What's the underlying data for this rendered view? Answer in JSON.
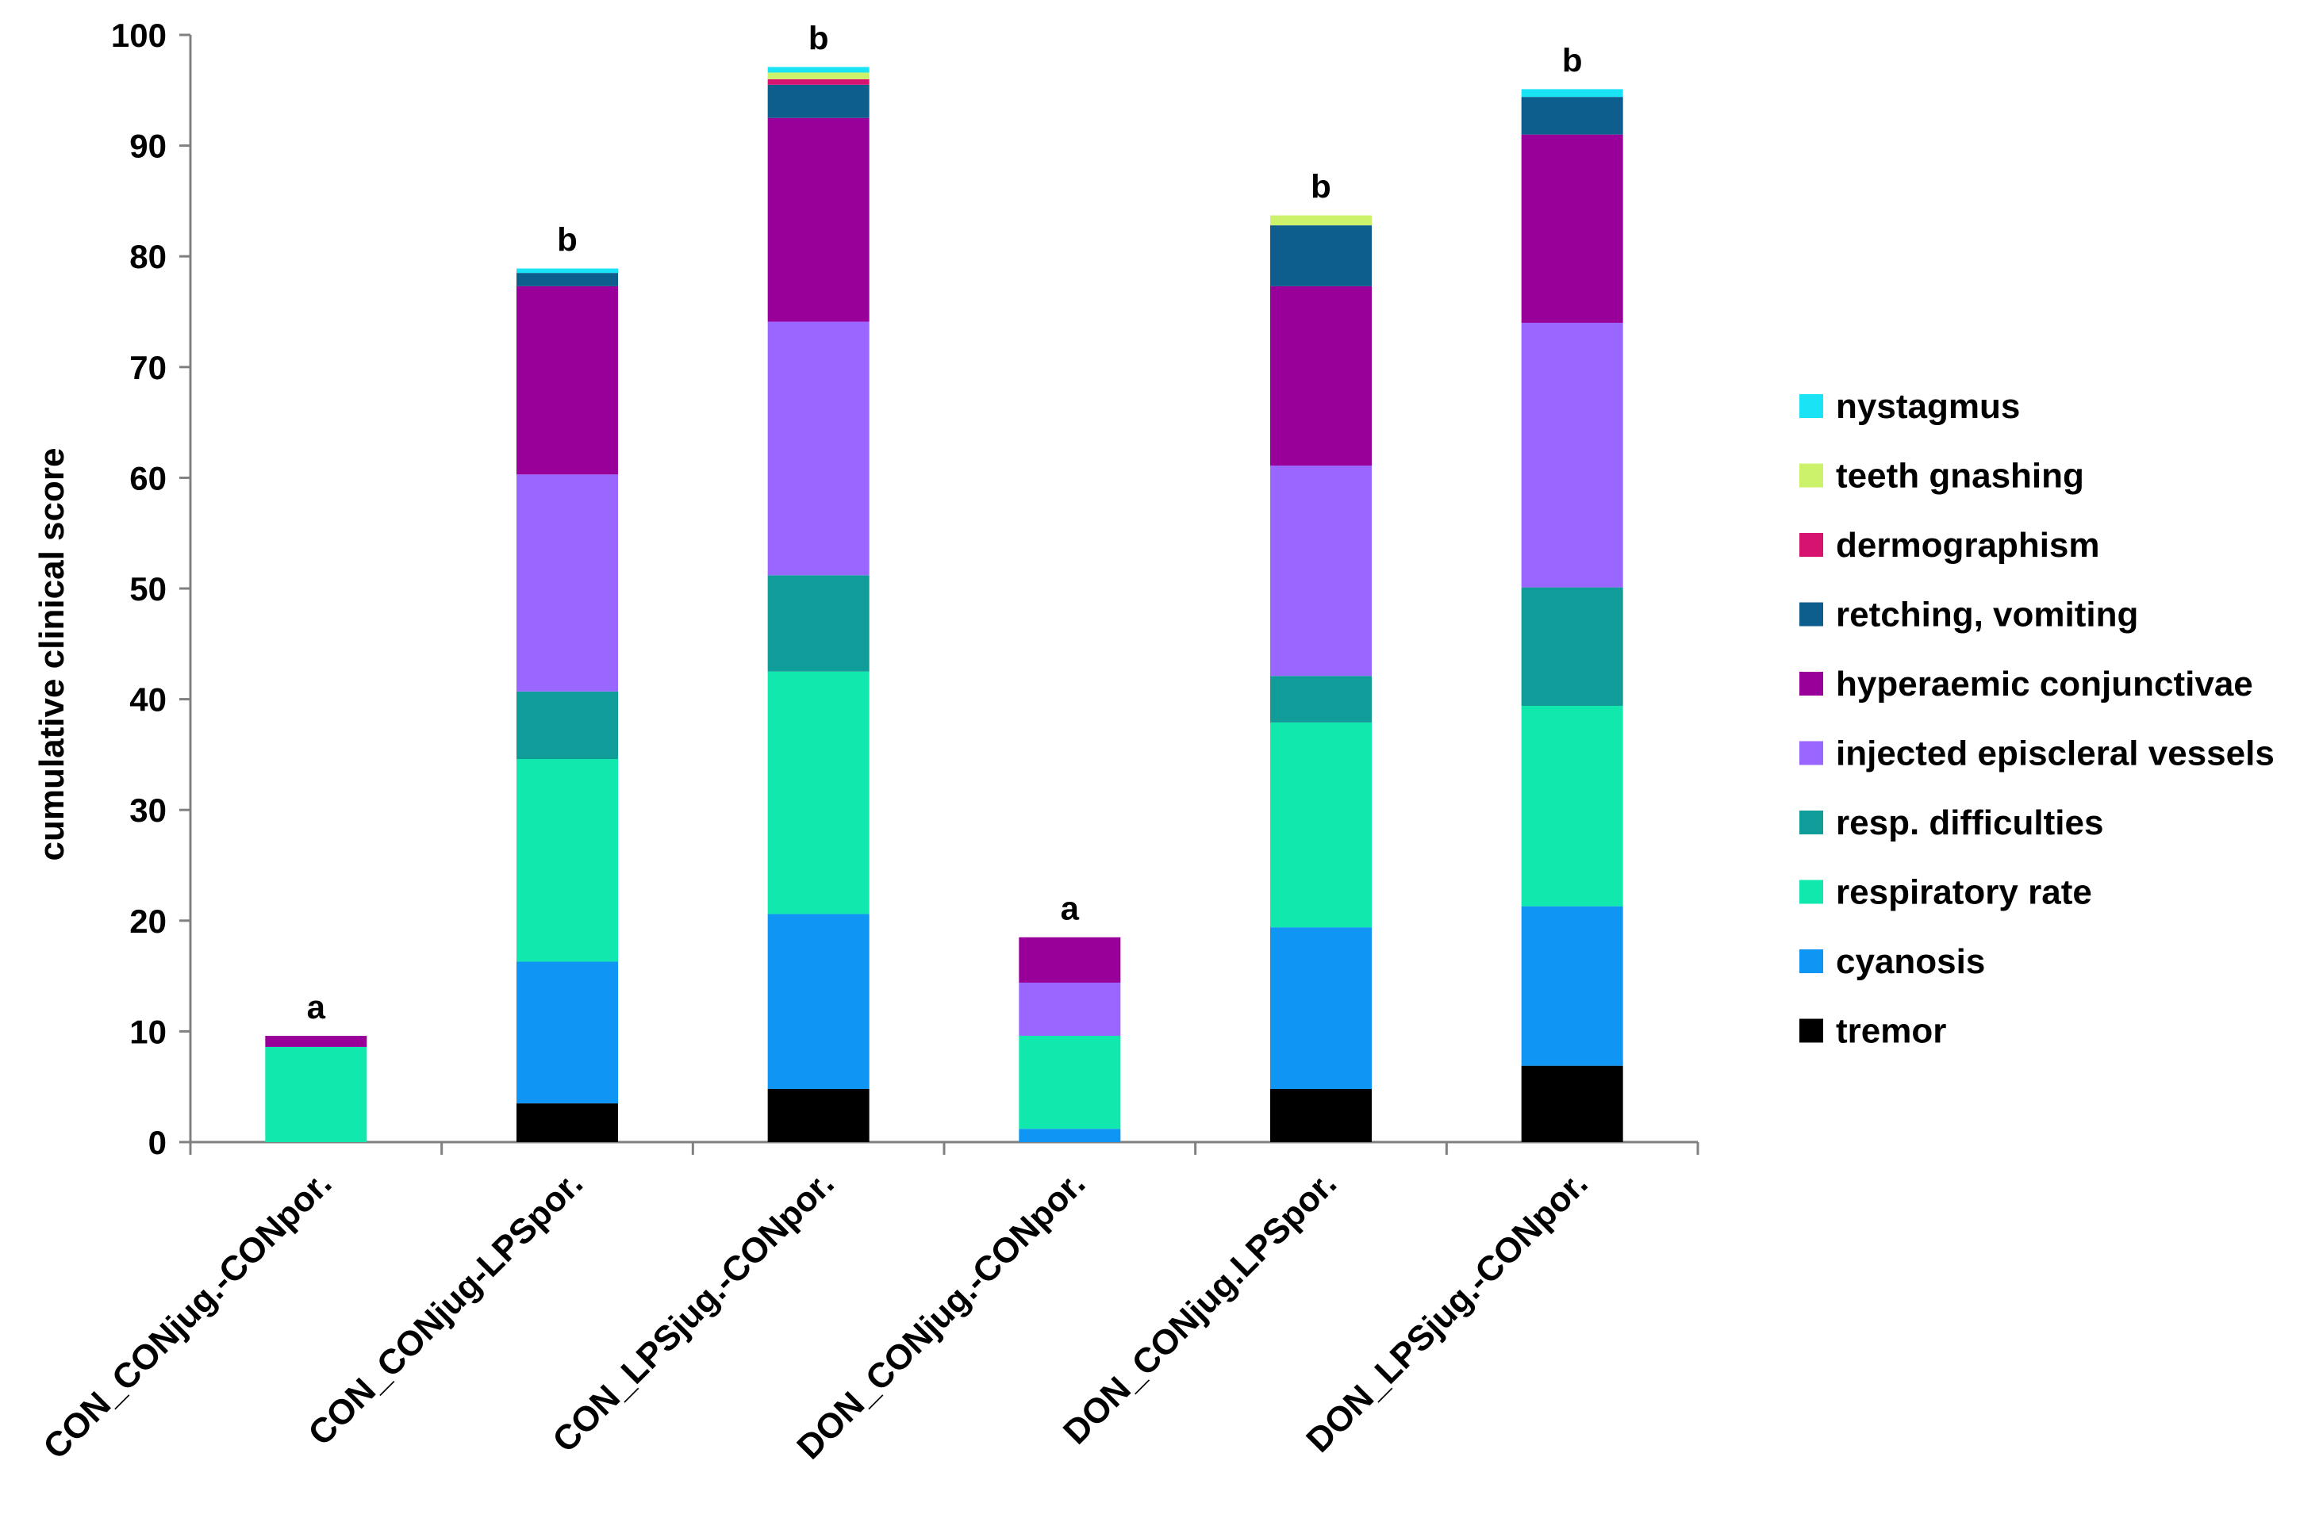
{
  "chart_data": {
    "type": "bar",
    "stacked": true,
    "title": "",
    "xlabel": "",
    "ylabel": "cumulative clinical score",
    "ylim": [
      0,
      100
    ],
    "yticks": [
      0,
      10,
      20,
      30,
      40,
      50,
      60,
      70,
      80,
      90,
      100
    ],
    "grid": false,
    "legend_position": "right",
    "categories": [
      "CON_CONjug.-CONpor.",
      "CON_CONjug-LPSpor.",
      "CON_LPSjug.-CONpor.",
      "DON_CONjug.-CONpor.",
      "DON_CONjug.LPSpor.",
      "DON_LPSjug.-CONpor."
    ],
    "significance_labels": [
      "a",
      "b",
      "b",
      "a",
      "b",
      "b"
    ],
    "series": [
      {
        "name": "tremor",
        "color": "#000000",
        "values": [
          0,
          3.5,
          4.8,
          0,
          4.8,
          6.9
        ]
      },
      {
        "name": "cyanosis",
        "color": "#0f95f4",
        "values": [
          0,
          12.8,
          15.8,
          1.2,
          14.6,
          14.4
        ]
      },
      {
        "name": "respiratory rate",
        "color": "#11e8ad",
        "values": [
          8.6,
          18.3,
          21.9,
          8.4,
          18.5,
          18.1
        ]
      },
      {
        "name": "resp. difficulties",
        "color": "#109c98",
        "values": [
          0,
          6.1,
          8.7,
          0,
          4.2,
          10.7
        ]
      },
      {
        "name": "injected episcleral vessels",
        "color": "#9966ff",
        "values": [
          0,
          19.6,
          22.9,
          4.8,
          19.0,
          23.9
        ]
      },
      {
        "name": "hyperaemic conjunctivae",
        "color": "#990099",
        "values": [
          1.0,
          17.0,
          18.4,
          4.1,
          16.2,
          17.0
        ]
      },
      {
        "name": "retching, vomiting",
        "color": "#0d5e8c",
        "values": [
          0,
          1.2,
          3.0,
          0,
          5.5,
          3.4
        ]
      },
      {
        "name": "dermographism",
        "color": "#d6136e",
        "values": [
          0,
          0,
          0.5,
          0,
          0,
          0
        ]
      },
      {
        "name": "teeth gnashing",
        "color": "#ccf26b",
        "values": [
          0,
          0,
          0.6,
          0,
          0.9,
          0
        ]
      },
      {
        "name": "nystagmus",
        "color": "#19e3f5",
        "values": [
          0,
          0.4,
          0.5,
          0,
          0,
          0.7
        ]
      }
    ]
  }
}
